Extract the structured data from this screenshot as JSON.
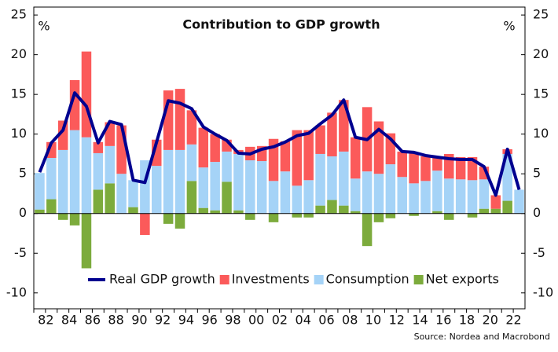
{
  "chart_data": {
    "type": "bar",
    "title": "Contribution to GDP growth",
    "y_unit": "%",
    "y2_unit": "%",
    "source": "Source: Nordea and Macrobond",
    "categories": [
      null,
      "82",
      null,
      "84",
      null,
      "86",
      null,
      "88",
      null,
      "90",
      null,
      "92",
      null,
      "94",
      null,
      "96",
      null,
      "98",
      null,
      "00",
      null,
      "02",
      null,
      "04",
      null,
      "06",
      null,
      "08",
      null,
      "10",
      null,
      "12",
      null,
      "14",
      null,
      "16",
      null,
      "18",
      null,
      "20",
      null,
      "22"
    ],
    "series": [
      {
        "name": "Real GDP growth",
        "type": "line",
        "color": "#00008f",
        "values": [
          5.2,
          8.9,
          10.5,
          15.2,
          13.5,
          8.9,
          11.6,
          11.2,
          4.2,
          3.9,
          9.0,
          14.2,
          13.9,
          13.2,
          10.9,
          10.0,
          9.2,
          7.6,
          7.5,
          8.1,
          8.4,
          9.0,
          9.8,
          10.1,
          11.3,
          12.4,
          14.3,
          9.6,
          9.3,
          10.6,
          9.4,
          7.8,
          7.7,
          7.3,
          7.1,
          6.9,
          6.8,
          6.8,
          5.9,
          2.3,
          8.1,
          3.0
        ]
      },
      {
        "name": "Investments",
        "type": "bar",
        "color": "#fb5a5a",
        "values": [
          0,
          2.0,
          3.7,
          6.3,
          10.8,
          1.4,
          3.0,
          6.1,
          0,
          -2.7,
          3.3,
          7.5,
          7.7,
          4.3,
          5.0,
          3.5,
          1.5,
          0.5,
          1.7,
          1.9,
          5.3,
          3.8,
          7.0,
          6.3,
          3.6,
          5.5,
          6.5,
          5.2,
          8.1,
          6.6,
          3.9,
          3.2,
          3.8,
          3.1,
          1.7,
          3.1,
          2.8,
          2.9,
          1.6,
          1.7,
          0.6,
          0
        ]
      },
      {
        "name": "Consumption",
        "type": "bar",
        "color": "#a5d3f7",
        "values": [
          4.6,
          5.2,
          8.0,
          10.5,
          9.6,
          4.6,
          4.7,
          5.0,
          3.4,
          6.7,
          6.0,
          8.0,
          8.0,
          4.6,
          5.1,
          6.1,
          3.8,
          7.1,
          6.7,
          6.6,
          4.1,
          5.3,
          3.5,
          4.2,
          6.5,
          5.5,
          6.8,
          4.1,
          5.3,
          5.0,
          6.2,
          4.6,
          3.8,
          4.1,
          5.1,
          4.4,
          4.3,
          4.2,
          3.7,
          0,
          5.9,
          3.0
        ]
      },
      {
        "name": "Net exports",
        "type": "bar",
        "color": "#7cab3c",
        "values": [
          0.5,
          1.8,
          -0.8,
          -1.5,
          -6.9,
          3.0,
          3.8,
          0,
          0.8,
          0,
          0,
          -1.3,
          -1.9,
          4.1,
          0.7,
          0.4,
          4.0,
          0.4,
          -0.8,
          0,
          -1.1,
          0,
          -0.5,
          -0.5,
          1.0,
          1.7,
          1.0,
          0.3,
          -4.1,
          -1.1,
          -0.6,
          0,
          -0.3,
          0,
          0.3,
          -0.8,
          0,
          -0.5,
          0.6,
          0.6,
          1.6,
          0
        ]
      }
    ],
    "stack_order": [
      "Net exports",
      "Consumption",
      "Investments"
    ],
    "ylim": [
      -12,
      26
    ],
    "yticks": [
      -10,
      -5,
      0,
      5,
      10,
      15,
      20,
      25
    ],
    "y2lim": [
      -12,
      26
    ],
    "y2ticks": [
      -10,
      -5,
      0,
      5,
      10,
      15,
      20,
      25
    ],
    "grid": false,
    "legend": "bottom"
  }
}
